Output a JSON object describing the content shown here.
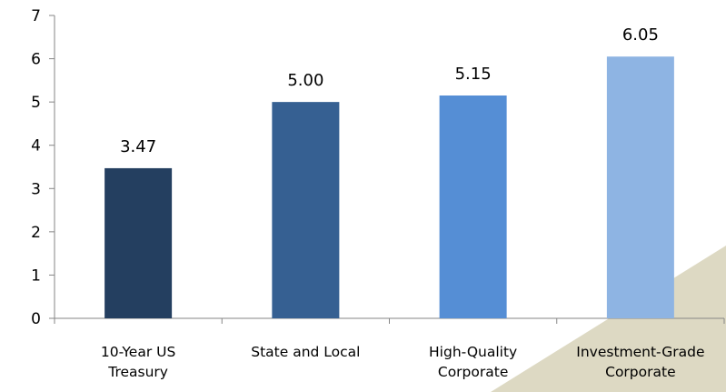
{
  "chart_data": {
    "type": "bar",
    "categories": [
      [
        "10-Year US",
        "Treasury"
      ],
      [
        "State and Local"
      ],
      [
        "High-Quality",
        "Corporate"
      ],
      [
        "Investment-Grade",
        "Corporate"
      ]
    ],
    "values": [
      3.47,
      5.0,
      5.15,
      6.05
    ],
    "data_labels": [
      "3.47",
      "5.00",
      "5.15",
      "6.05"
    ],
    "bar_colors": [
      "#243f60",
      "#366092",
      "#558ed5",
      "#8eb4e3"
    ],
    "ylim": [
      0,
      7
    ],
    "yticks": [
      0,
      1,
      2,
      3,
      4,
      5,
      6,
      7
    ],
    "title": "",
    "xlabel": "",
    "ylabel": "",
    "grid": false,
    "legend": "none"
  },
  "decoration": {
    "corner_shape_color": "#ddd9c3"
  }
}
